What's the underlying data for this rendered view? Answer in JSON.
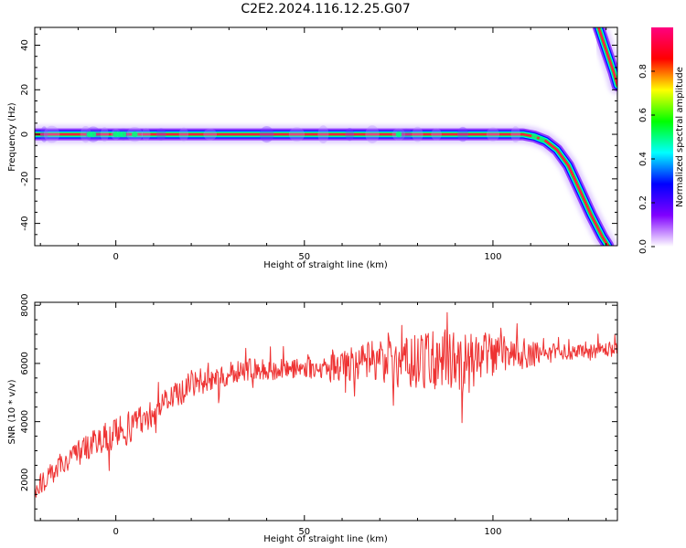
{
  "page_title": "C2E2.2024.116.12.25.G07",
  "chart_data": [
    {
      "type": "heatmap",
      "xlabel": "Height of straight line (km)",
      "ylabel": "Frequency (Hz)",
      "xlim": [
        -21.5,
        133
      ],
      "ylim": [
        -50,
        48
      ],
      "xticks": [
        0,
        50,
        100
      ],
      "yticks": [
        -40,
        -20,
        0,
        20,
        40
      ],
      "grid": false,
      "colorbar": {
        "label": "Normalized spectral amplitude",
        "range": [
          0,
          1
        ],
        "ticks": [
          "0.0",
          "0.2",
          "0.4",
          "0.6",
          "0.8"
        ],
        "colors": [
          "#ffffff",
          "#8000ff",
          "#0000ff",
          "#00ffff",
          "#00ff00",
          "#ffff00",
          "#ff0000",
          "#ff0080"
        ]
      },
      "ridge": [
        {
          "x": -21.5,
          "y": 0
        },
        {
          "x": 20,
          "y": 0
        },
        {
          "x": 60,
          "y": 0
        },
        {
          "x": 100,
          "y": 0
        },
        {
          "x": 108,
          "y": 0
        },
        {
          "x": 111,
          "y": -1
        },
        {
          "x": 114,
          "y": -3
        },
        {
          "x": 117,
          "y": -7
        },
        {
          "x": 120,
          "y": -14
        },
        {
          "x": 123,
          "y": -25
        },
        {
          "x": 126,
          "y": -36
        },
        {
          "x": 129,
          "y": -46
        },
        {
          "x": 130.5,
          "y": -50
        }
      ],
      "ridge_upper": [
        {
          "x": 128,
          "y": 48
        },
        {
          "x": 130,
          "y": 38
        },
        {
          "x": 132,
          "y": 28
        },
        {
          "x": 133,
          "y": 22
        }
      ]
    },
    {
      "type": "line",
      "xlabel": "Height of straight line (km)",
      "ylabel": "SNR (10 * v/v)",
      "xlim": [
        -21.5,
        133
      ],
      "ylim": [
        600,
        8100
      ],
      "xticks": [
        0,
        50,
        100
      ],
      "yticks": [
        2000,
        4000,
        6000,
        8000
      ],
      "grid": false,
      "series": [
        {
          "color": "#ee3333",
          "trend": [
            {
              "x": -21.5,
              "y": 1600
            },
            {
              "x": -15,
              "y": 2500
            },
            {
              "x": -5,
              "y": 3300
            },
            {
              "x": 5,
              "y": 3900
            },
            {
              "x": 20,
              "y": 5300
            },
            {
              "x": 35,
              "y": 5800
            },
            {
              "x": 55,
              "y": 5850
            },
            {
              "x": 70,
              "y": 6100
            },
            {
              "x": 90,
              "y": 6100
            },
            {
              "x": 105,
              "y": 6300
            },
            {
              "x": 133,
              "y": 6500
            }
          ],
          "noise_amplitude": [
            {
              "x": -21.5,
              "y": 300
            },
            {
              "x": 0,
              "y": 550
            },
            {
              "x": 20,
              "y": 450
            },
            {
              "x": 50,
              "y": 350
            },
            {
              "x": 70,
              "y": 750
            },
            {
              "x": 90,
              "y": 1100
            },
            {
              "x": 105,
              "y": 600
            },
            {
              "x": 115,
              "y": 280
            },
            {
              "x": 133,
              "y": 260
            }
          ]
        }
      ]
    }
  ]
}
